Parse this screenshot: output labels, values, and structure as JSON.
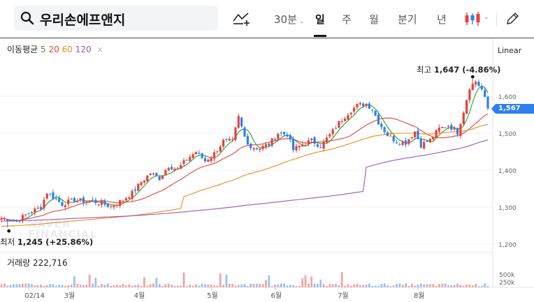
{
  "header": {
    "title": "우리손에프앤지",
    "interval": "30분",
    "tabs": [
      "일",
      "주",
      "월",
      "분기",
      "년"
    ],
    "active_tab": "일"
  },
  "moving_average": {
    "label": "이동평균",
    "periods": [
      {
        "value": "5",
        "color": "#2aa02a"
      },
      {
        "value": "20",
        "color": "#e8413c"
      },
      {
        "value": "60",
        "color": "#f08a1c"
      },
      {
        "value": "120",
        "color": "#9b59b6"
      }
    ]
  },
  "scale_mode": "Linear",
  "annotations": {
    "high_label": "최고",
    "high_value": "1,647 (-4.86%)",
    "low_label": "최저",
    "low_value": "1,245 (+25.86%)"
  },
  "current_price": "1,567",
  "volume": {
    "label": "거래량",
    "value": "222,716",
    "ticks": [
      "500k",
      "250k"
    ]
  },
  "watermark": [
    "NAVER",
    "FINANCIAL"
  ],
  "colors": {
    "up": "#e8413c",
    "down": "#2f80ed",
    "accent": "#2f80ed"
  },
  "chart_data": {
    "type": "candlestick",
    "price_axis": {
      "ticks": [
        "1,600",
        "1,500",
        "1,400",
        "1,300",
        "1,200"
      ],
      "range": [
        1200,
        1650
      ]
    },
    "x_labels": [
      "02/14",
      "3월",
      "4월",
      "5월",
      "6월",
      "7월",
      "8월"
    ],
    "anchors": [
      [
        0,
        1270
      ],
      [
        5,
        1262
      ],
      [
        9,
        1285
      ],
      [
        13,
        1300
      ],
      [
        15,
        1340
      ],
      [
        20,
        1308
      ],
      [
        24,
        1320
      ],
      [
        27,
        1316
      ],
      [
        30,
        1316
      ],
      [
        33,
        1310
      ],
      [
        36,
        1302
      ],
      [
        40,
        1320
      ],
      [
        43,
        1338
      ],
      [
        46,
        1368
      ],
      [
        49,
        1392
      ],
      [
        52,
        1378
      ],
      [
        55,
        1412
      ],
      [
        58,
        1402
      ],
      [
        61,
        1430
      ],
      [
        64,
        1450
      ],
      [
        67,
        1425
      ],
      [
        70,
        1445
      ],
      [
        73,
        1478
      ],
      [
        76,
        1478
      ],
      [
        78,
        1543
      ],
      [
        80,
        1490
      ],
      [
        82,
        1462
      ],
      [
        85,
        1460
      ],
      [
        88,
        1470
      ],
      [
        91,
        1500
      ],
      [
        94,
        1497
      ],
      [
        96,
        1455
      ],
      [
        99,
        1470
      ],
      [
        102,
        1480
      ],
      [
        105,
        1465
      ],
      [
        108,
        1495
      ],
      [
        111,
        1528
      ],
      [
        114,
        1555
      ],
      [
        117,
        1575
      ],
      [
        120,
        1580
      ],
      [
        122,
        1565
      ],
      [
        124,
        1530
      ],
      [
        127,
        1495
      ],
      [
        130,
        1477
      ],
      [
        133,
        1475
      ],
      [
        136,
        1505
      ],
      [
        138,
        1468
      ],
      [
        141,
        1482
      ],
      [
        144,
        1512
      ],
      [
        147,
        1522
      ],
      [
        150,
        1502
      ],
      [
        152,
        1560
      ],
      [
        154,
        1625
      ],
      [
        156,
        1640
      ],
      [
        158,
        1618
      ],
      [
        160,
        1567
      ]
    ],
    "low_point": {
      "index": 2,
      "value": 1245
    },
    "high_point": {
      "index": 155,
      "value": 1647
    },
    "ma_series": [
      {
        "name": "5",
        "color": "#2aa02a",
        "window": 5
      },
      {
        "name": "20",
        "color": "#e8413c",
        "window": 20
      },
      {
        "name": "60",
        "color": "#f08a1c",
        "window": 60,
        "start": [
          1248,
          1278
        ]
      },
      {
        "name": "120",
        "color": "#9b59b6",
        "window": 120,
        "start": [
          1262,
          1302
        ]
      }
    ]
  }
}
